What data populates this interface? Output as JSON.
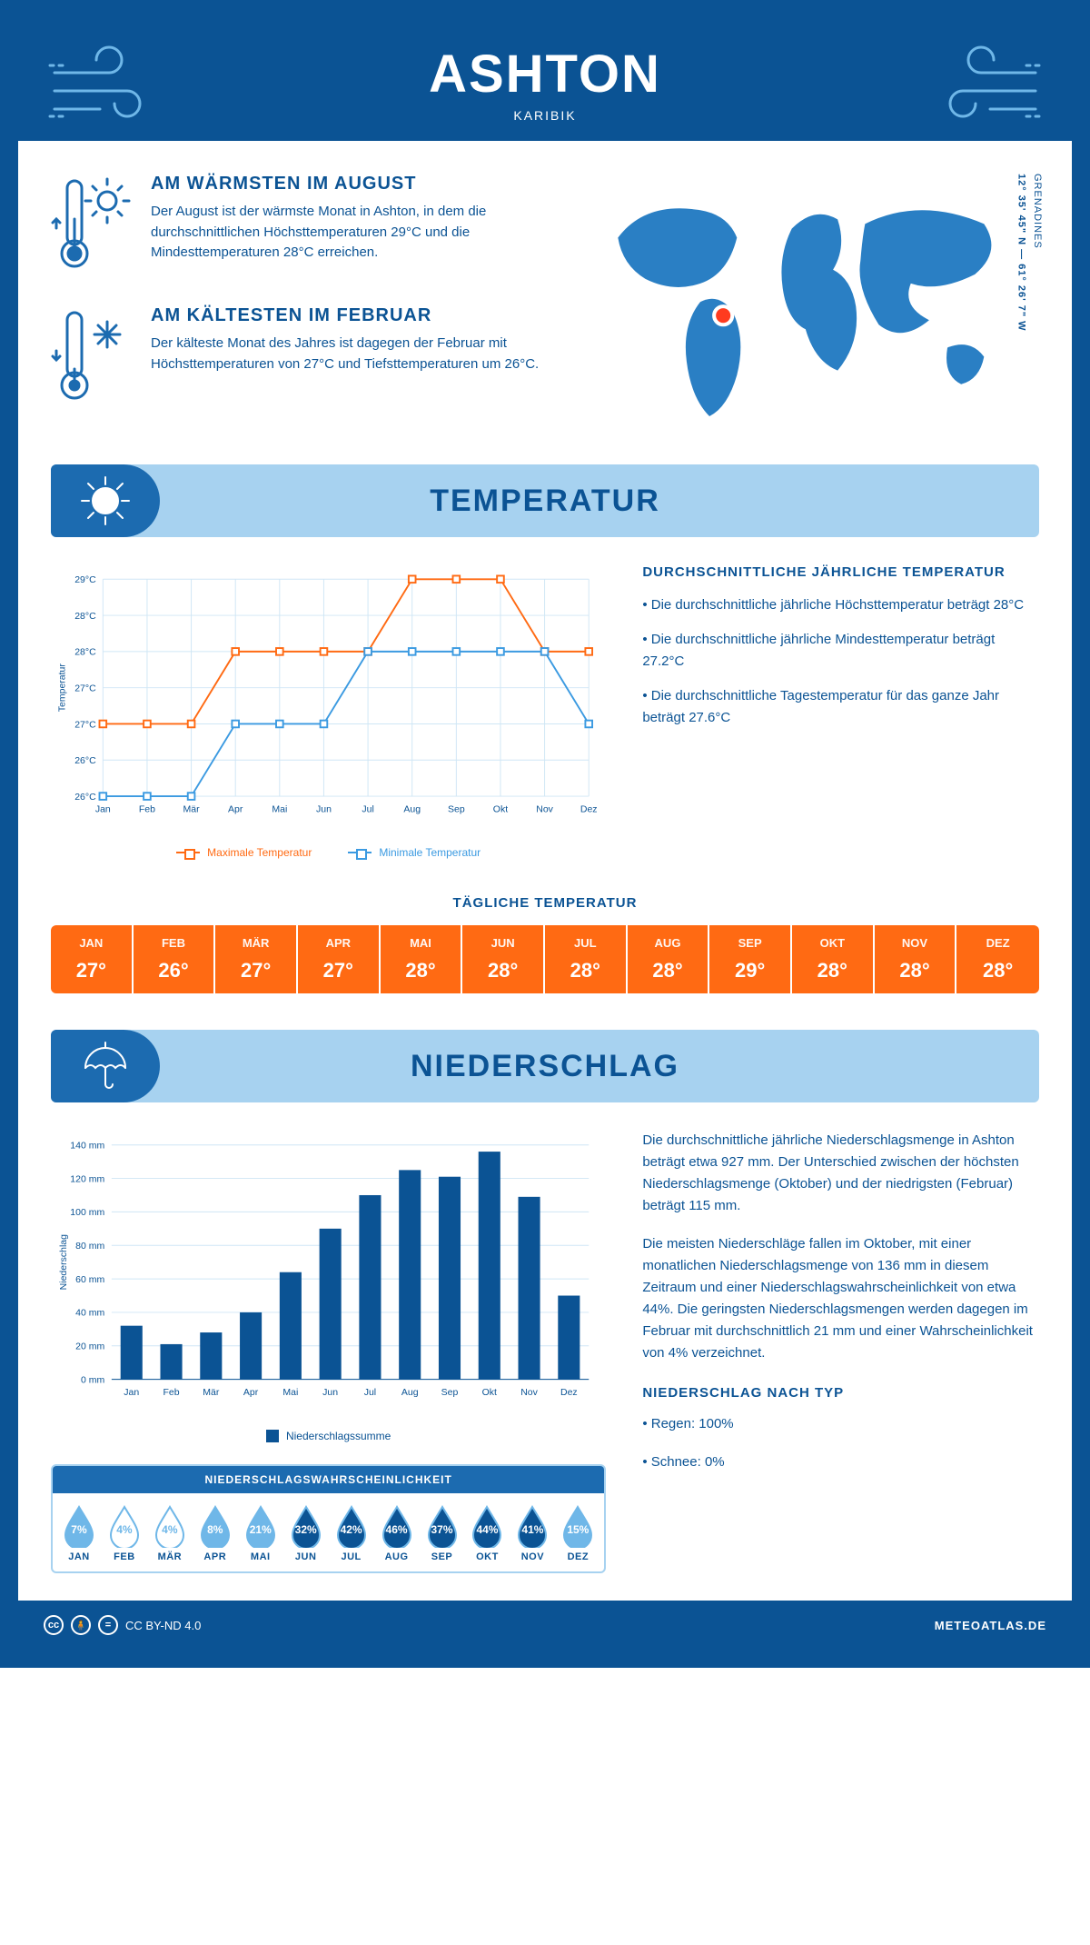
{
  "header": {
    "title": "ASHTON",
    "subtitle": "KARIBIK"
  },
  "coords": {
    "lat": "12° 35' 45\" N",
    "lon": "61° 26' 7\" W",
    "country": "GRENADINES"
  },
  "facts": {
    "warm": {
      "title": "AM WÄRMSTEN IM AUGUST",
      "text": "Der August ist der wärmste Monat in Ashton, in dem die durchschnittlichen Höchsttemperaturen 29°C und die Mindesttemperaturen 28°C erreichen."
    },
    "cold": {
      "title": "AM KÄLTESTEN IM FEBRUAR",
      "text": "Der kälteste Monat des Jahres ist dagegen der Februar mit Höchsttemperaturen von 27°C und Tiefsttemperaturen um 26°C."
    }
  },
  "sections": {
    "temp_title": "TEMPERATUR",
    "precip_title": "NIEDERSCHLAG"
  },
  "temp_chart": {
    "type": "line",
    "months": [
      "Jan",
      "Feb",
      "Mär",
      "Apr",
      "Mai",
      "Jun",
      "Jul",
      "Aug",
      "Sep",
      "Okt",
      "Nov",
      "Dez"
    ],
    "ylabel": "Temperatur",
    "ylim": [
      26,
      29
    ],
    "ytick_step": 0.5,
    "ytick_labels": [
      "26°C",
      "26°C",
      "27°C",
      "27°C",
      "28°C",
      "28°C",
      "29°C"
    ],
    "series": {
      "max": {
        "label": "Maximale Temperatur",
        "color": "#ff6a13",
        "values": [
          27,
          27,
          27,
          28,
          28,
          28,
          28,
          29,
          29,
          29,
          28,
          28
        ]
      },
      "min": {
        "label": "Minimale Temperatur",
        "color": "#3b9ae1",
        "values": [
          26,
          26,
          26,
          27,
          27,
          27,
          28,
          28,
          28,
          28,
          28,
          27
        ]
      }
    },
    "grid_color": "#cfe6f5",
    "line_width": 2,
    "marker": "square-open",
    "marker_size": 8
  },
  "temp_notes": {
    "heading": "DURCHSCHNITTLICHE JÄHRLICHE TEMPERATUR",
    "items": [
      "• Die durchschnittliche jährliche Höchsttemperatur beträgt 28°C",
      "• Die durchschnittliche jährliche Mindesttemperatur beträgt 27.2°C",
      "• Die durchschnittliche Tagestemperatur für das ganze Jahr beträgt 27.6°C"
    ]
  },
  "daily": {
    "title": "TÄGLICHE TEMPERATUR",
    "months": [
      "JAN",
      "FEB",
      "MÄR",
      "APR",
      "MAI",
      "JUN",
      "JUL",
      "AUG",
      "SEP",
      "OKT",
      "NOV",
      "DEZ"
    ],
    "values": [
      "27°",
      "26°",
      "27°",
      "27°",
      "28°",
      "28°",
      "28°",
      "28°",
      "29°",
      "28°",
      "28°",
      "28°"
    ],
    "bg_color": "#ff6a13",
    "text_color": "#ffffff"
  },
  "precip_chart": {
    "type": "bar",
    "months": [
      "Jan",
      "Feb",
      "Mär",
      "Apr",
      "Mai",
      "Jun",
      "Jul",
      "Aug",
      "Sep",
      "Okt",
      "Nov",
      "Dez"
    ],
    "values": [
      32,
      21,
      28,
      40,
      64,
      90,
      110,
      125,
      121,
      136,
      109,
      50
    ],
    "ylabel": "Niederschlag",
    "ylim": [
      0,
      140
    ],
    "ytick_step": 20,
    "ytick_suffix": " mm",
    "bar_color": "#0b5394",
    "grid_color": "#cfe6f5",
    "legend_label": "Niederschlagssumme"
  },
  "precip_text": {
    "p1": "Die durchschnittliche jährliche Niederschlagsmenge in Ashton beträgt etwa 927 mm. Der Unterschied zwischen der höchsten Niederschlagsmenge (Oktober) und der niedrigsten (Februar) beträgt 115 mm.",
    "p2": "Die meisten Niederschläge fallen im Oktober, mit einer monatlichen Niederschlagsmenge von 136 mm in diesem Zeitraum und einer Niederschlagswahrscheinlichkeit von etwa 44%. Die geringsten Niederschlagsmengen werden dagegen im Februar mit durchschnittlich 21 mm und einer Wahrscheinlichkeit von 4% verzeichnet.",
    "type_heading": "NIEDERSCHLAG NACH TYP",
    "type_items": [
      "• Regen: 100%",
      "• Schnee: 0%"
    ]
  },
  "prob": {
    "title": "NIEDERSCHLAGSWAHRSCHEINLICHKEIT",
    "months": [
      "JAN",
      "FEB",
      "MÄR",
      "APR",
      "MAI",
      "JUN",
      "JUL",
      "AUG",
      "SEP",
      "OKT",
      "NOV",
      "DEZ"
    ],
    "values": [
      "7%",
      "4%",
      "4%",
      "8%",
      "21%",
      "32%",
      "42%",
      "46%",
      "37%",
      "44%",
      "41%",
      "15%"
    ],
    "fills": [
      "light",
      "empty",
      "empty",
      "light",
      "light",
      "dark",
      "dark",
      "dark",
      "dark",
      "dark",
      "dark",
      "light"
    ],
    "colors": {
      "dark": "#0b5394",
      "light": "#6fb7e8",
      "empty": "#ffffff",
      "stroke": "#6fb7e8"
    }
  },
  "footer": {
    "license": "CC BY-ND 4.0",
    "brand": "METEOATLAS.DE"
  }
}
